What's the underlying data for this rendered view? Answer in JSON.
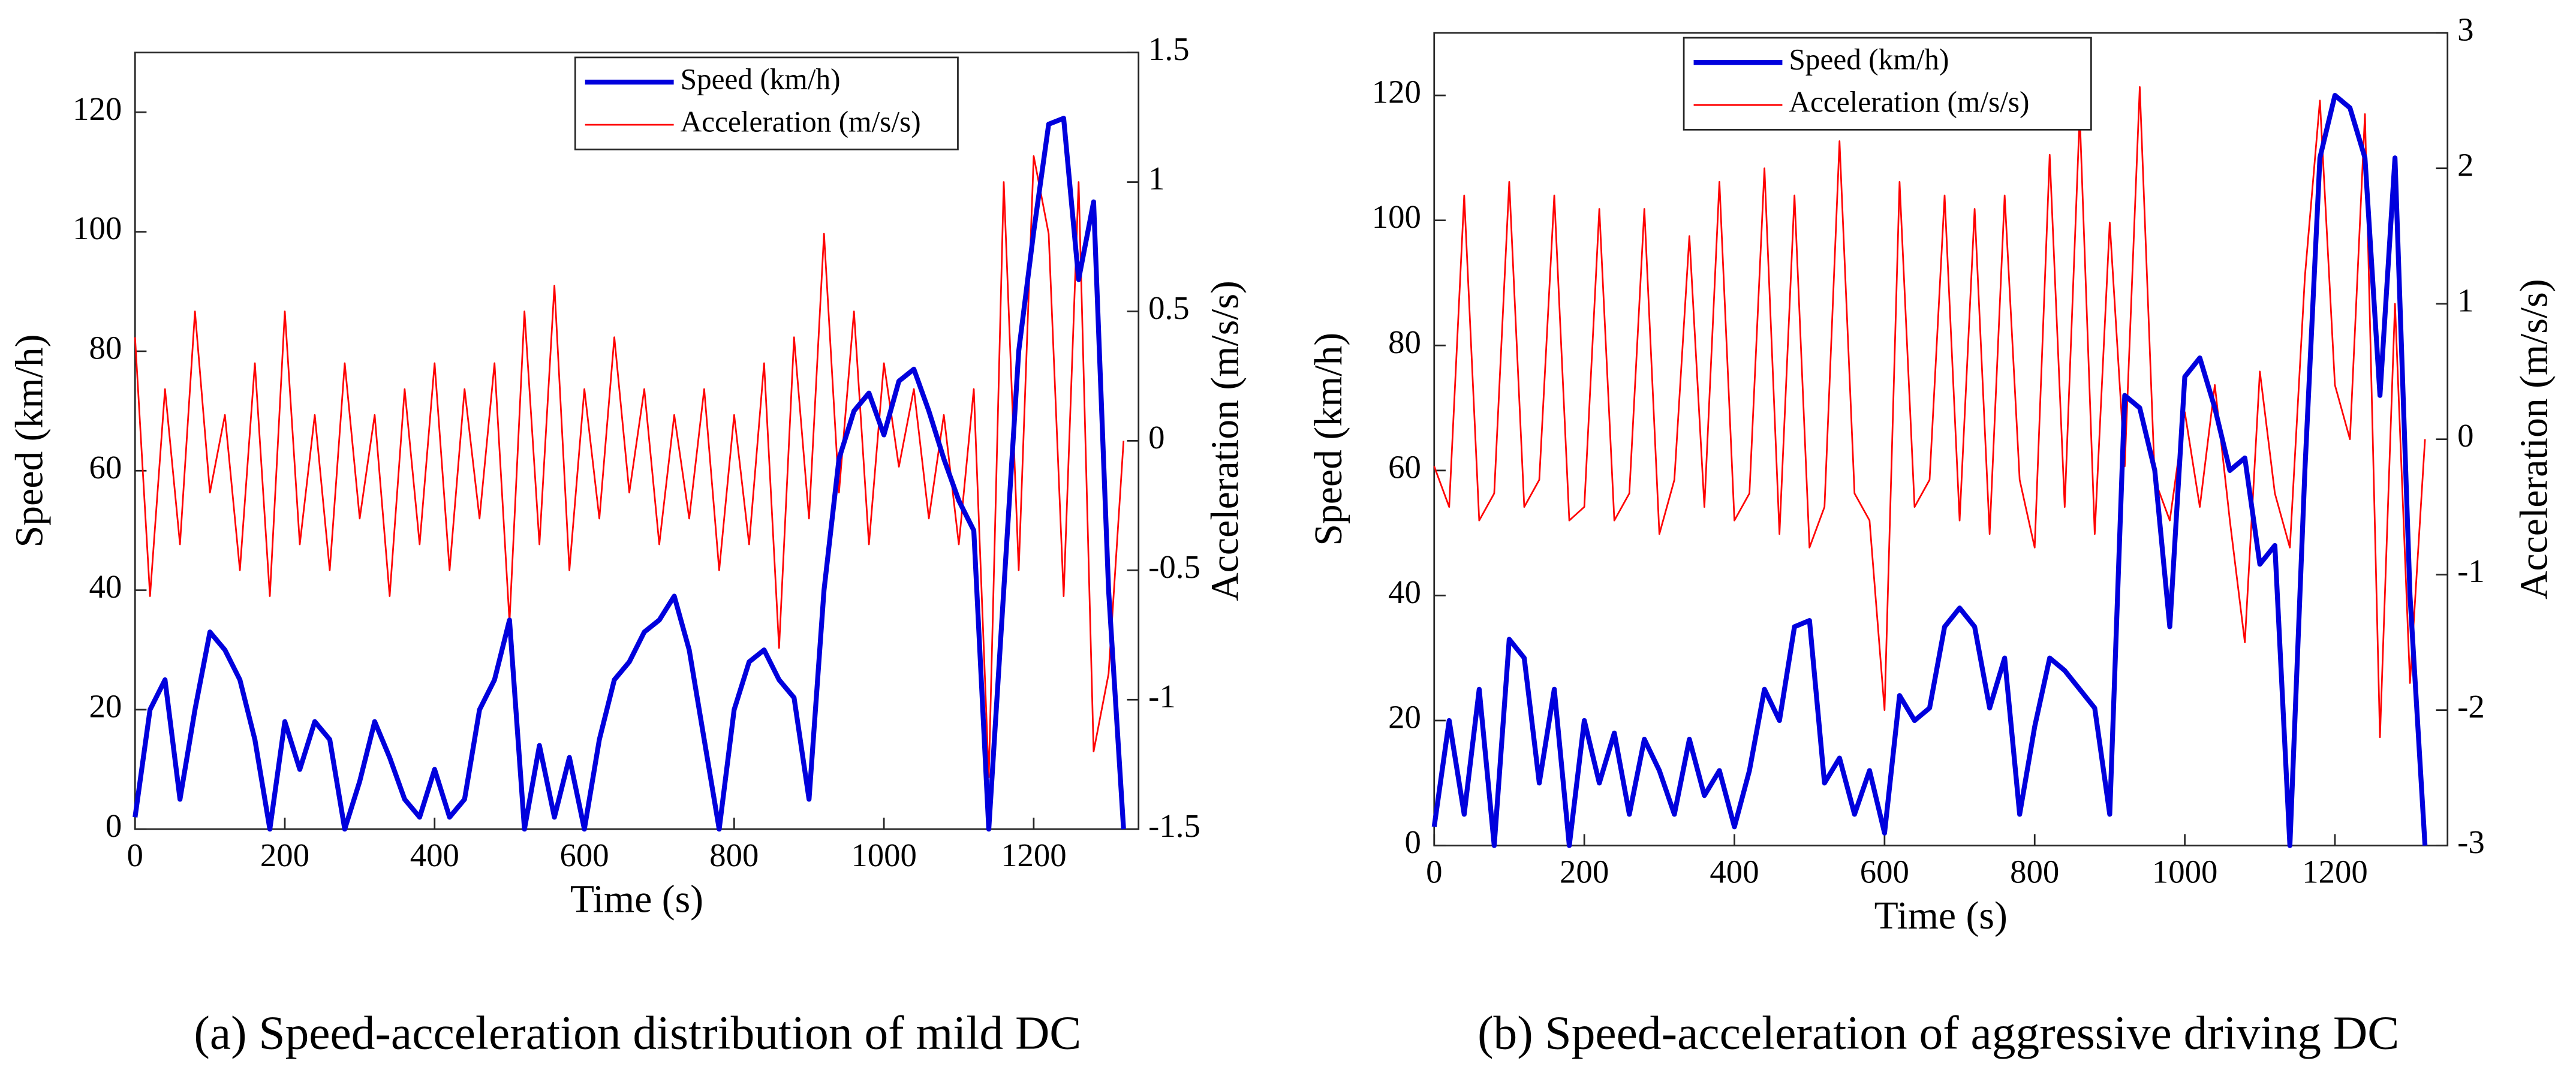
{
  "chart_data": [
    {
      "type": "line",
      "caption": "(a) Speed-acceleration distribution of mild DC",
      "x_label": "Time (s)",
      "y_label": "Speed (km/h)",
      "y2_label": "Acceleration (m/s/s)",
      "x": [
        0,
        20,
        40,
        60,
        80,
        100,
        120,
        140,
        160,
        180,
        200,
        220,
        240,
        260,
        280,
        300,
        320,
        340,
        360,
        380,
        400,
        420,
        440,
        460,
        480,
        500,
        520,
        540,
        560,
        580,
        600,
        620,
        640,
        660,
        680,
        700,
        720,
        740,
        760,
        780,
        800,
        820,
        840,
        860,
        880,
        900,
        920,
        940,
        960,
        980,
        1000,
        1020,
        1040,
        1060,
        1080,
        1100,
        1120,
        1140,
        1160,
        1180,
        1200,
        1220,
        1240,
        1260,
        1280,
        1300,
        1320
      ],
      "series": [
        {
          "name": "Speed (km/h)",
          "color": "#0000dd",
          "axis": "y",
          "values": [
            2,
            20,
            25,
            5,
            20,
            33,
            30,
            25,
            15,
            0,
            18,
            10,
            18,
            15,
            0,
            8,
            18,
            12,
            5,
            2,
            10,
            2,
            5,
            20,
            25,
            35,
            0,
            14,
            2,
            12,
            0,
            15,
            25,
            28,
            33,
            35,
            39,
            30,
            15,
            0,
            20,
            28,
            30,
            25,
            22,
            5,
            40,
            62,
            70,
            73,
            66,
            75,
            77,
            70,
            62,
            55,
            50,
            0,
            40,
            80,
            100,
            118,
            119,
            92,
            105,
            40,
            0
          ]
        },
        {
          "name": "Acceleration (m/s/s)",
          "color": "#ff0000",
          "axis": "y2",
          "values": [
            0.4,
            -0.6,
            0.2,
            -0.4,
            0.5,
            -0.2,
            0.1,
            -0.5,
            0.3,
            -0.6,
            0.5,
            -0.4,
            0.1,
            -0.5,
            0.3,
            -0.3,
            0.1,
            -0.6,
            0.2,
            -0.4,
            0.3,
            -0.5,
            0.2,
            -0.3,
            0.3,
            -0.7,
            0.5,
            -0.4,
            0.6,
            -0.5,
            0.2,
            -0.3,
            0.4,
            -0.2,
            0.2,
            -0.4,
            0.1,
            -0.3,
            0.2,
            -0.5,
            0.1,
            -0.4,
            0.3,
            -0.8,
            0.4,
            -0.3,
            0.8,
            -0.2,
            0.5,
            -0.4,
            0.3,
            -0.1,
            0.2,
            -0.3,
            0.1,
            -0.4,
            0.2,
            -1.3,
            1.0,
            -0.5,
            1.1,
            0.8,
            -0.6,
            1.0,
            -1.2,
            -0.9,
            0
          ]
        }
      ],
      "xlim": [
        0,
        1340
      ],
      "xticks": [
        0,
        200,
        400,
        600,
        800,
        1000,
        1200
      ],
      "ylim": [
        0,
        130
      ],
      "yticks": [
        0,
        20,
        40,
        60,
        80,
        100,
        120
      ],
      "y2lim": [
        -1.5,
        1.5
      ],
      "y2ticks": [
        -1.5,
        -1,
        -0.5,
        0,
        0.5,
        1,
        1.5
      ],
      "legend": "upper center"
    },
    {
      "type": "line",
      "caption": "(b) Speed-acceleration of aggressive driving DC",
      "x_label": "Time (s)",
      "y_label": "Speed (km/h)",
      "y2_label": "Acceleration (m/s/s)",
      "x": [
        0,
        20,
        40,
        60,
        80,
        100,
        120,
        140,
        160,
        180,
        200,
        220,
        240,
        260,
        280,
        300,
        320,
        340,
        360,
        380,
        400,
        420,
        440,
        460,
        480,
        500,
        520,
        540,
        560,
        580,
        600,
        620,
        640,
        660,
        680,
        700,
        720,
        740,
        760,
        780,
        800,
        820,
        840,
        860,
        880,
        900,
        920,
        940,
        960,
        980,
        1000,
        1020,
        1040,
        1060,
        1080,
        1100,
        1120,
        1140,
        1160,
        1180,
        1200,
        1220,
        1240,
        1260,
        1280,
        1300,
        1320
      ],
      "series": [
        {
          "name": "Speed (km/h)",
          "color": "#0000dd",
          "axis": "y",
          "values": [
            3,
            20,
            5,
            25,
            0,
            33,
            30,
            10,
            25,
            0,
            20,
            10,
            18,
            5,
            17,
            12,
            5,
            17,
            8,
            12,
            3,
            12,
            25,
            20,
            35,
            36,
            10,
            14,
            5,
            12,
            2,
            24,
            20,
            22,
            35,
            38,
            35,
            22,
            30,
            5,
            19,
            30,
            28,
            25,
            22,
            5,
            72,
            70,
            60,
            35,
            75,
            78,
            70,
            60,
            62,
            45,
            48,
            0,
            60,
            110,
            120,
            118,
            110,
            72,
            110,
            40,
            0
          ]
        },
        {
          "name": "Acceleration (m/s/s)",
          "color": "#ff0000",
          "axis": "y2",
          "values": [
            -0.2,
            -0.5,
            1.8,
            -0.6,
            -0.4,
            1.9,
            -0.5,
            -0.3,
            1.8,
            -0.6,
            -0.5,
            1.7,
            -0.6,
            -0.4,
            1.7,
            -0.7,
            -0.3,
            1.5,
            -0.5,
            1.9,
            -0.6,
            -0.4,
            2.0,
            -0.7,
            1.8,
            -0.8,
            -0.5,
            2.2,
            -0.4,
            -0.6,
            -2.0,
            1.9,
            -0.5,
            -0.3,
            1.8,
            -0.6,
            1.7,
            -0.7,
            1.8,
            -0.3,
            -0.8,
            2.1,
            -0.5,
            2.4,
            -0.7,
            1.6,
            -0.2,
            2.6,
            -0.3,
            -0.6,
            0.2,
            -0.5,
            0.4,
            -0.6,
            -1.5,
            0.5,
            -0.4,
            -0.8,
            1.2,
            2.5,
            0.4,
            0.0,
            2.4,
            -2.2,
            1.0,
            -1.8,
            0.0
          ]
        }
      ],
      "xlim": [
        0,
        1350
      ],
      "xticks": [
        0,
        200,
        400,
        600,
        800,
        1000,
        1200
      ],
      "ylim": [
        0,
        130
      ],
      "yticks": [
        0,
        20,
        40,
        60,
        80,
        100,
        120
      ],
      "y2lim": [
        -3,
        3
      ],
      "y2ticks": [
        -3,
        -2,
        -1,
        0,
        1,
        2,
        3
      ],
      "legend": "upper center"
    }
  ]
}
